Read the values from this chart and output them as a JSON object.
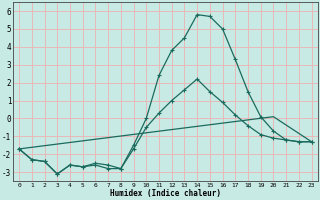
{
  "xlabel": "Humidex (Indice chaleur)",
  "bg_color": "#c8eae4",
  "grid_color": "#e8b8b8",
  "line_color": "#1a6b5e",
  "xlim": [
    -0.5,
    23.5
  ],
  "ylim": [
    -3.5,
    6.5
  ],
  "xticks": [
    0,
    1,
    2,
    3,
    4,
    5,
    6,
    7,
    8,
    9,
    10,
    11,
    12,
    13,
    14,
    15,
    16,
    17,
    18,
    19,
    20,
    21,
    22,
    23
  ],
  "yticks": [
    -3,
    -2,
    -1,
    0,
    1,
    2,
    3,
    4,
    5,
    6
  ],
  "line1_x": [
    0,
    1,
    2,
    3,
    4,
    5,
    6,
    7,
    8,
    9,
    10,
    11,
    12,
    13,
    14,
    15,
    16,
    17,
    18,
    19,
    20,
    21,
    22,
    23
  ],
  "line1_y": [
    -1.7,
    -2.3,
    -2.4,
    -3.1,
    -2.6,
    -2.7,
    -2.6,
    -2.8,
    -2.8,
    -1.5,
    0.0,
    2.4,
    3.8,
    4.5,
    5.8,
    5.7,
    5.0,
    3.3,
    1.5,
    0.1,
    -0.7,
    -1.2,
    -1.3,
    -1.3
  ],
  "line2_x": [
    0,
    1,
    2,
    3,
    4,
    5,
    6,
    7,
    8,
    9,
    10,
    11,
    12,
    13,
    14,
    15,
    16,
    17,
    18,
    19,
    20,
    21,
    22,
    23
  ],
  "line2_y": [
    -1.7,
    -2.3,
    -2.4,
    -3.1,
    -2.6,
    -2.7,
    -2.5,
    -2.6,
    -2.8,
    -1.7,
    -0.5,
    0.3,
    1.0,
    1.6,
    2.2,
    1.5,
    0.9,
    0.2,
    -0.4,
    -0.9,
    -1.1,
    -1.2,
    -1.3,
    -1.3
  ],
  "line3_x": [
    0,
    20,
    23
  ],
  "line3_y": [
    -1.7,
    0.1,
    -1.3
  ]
}
